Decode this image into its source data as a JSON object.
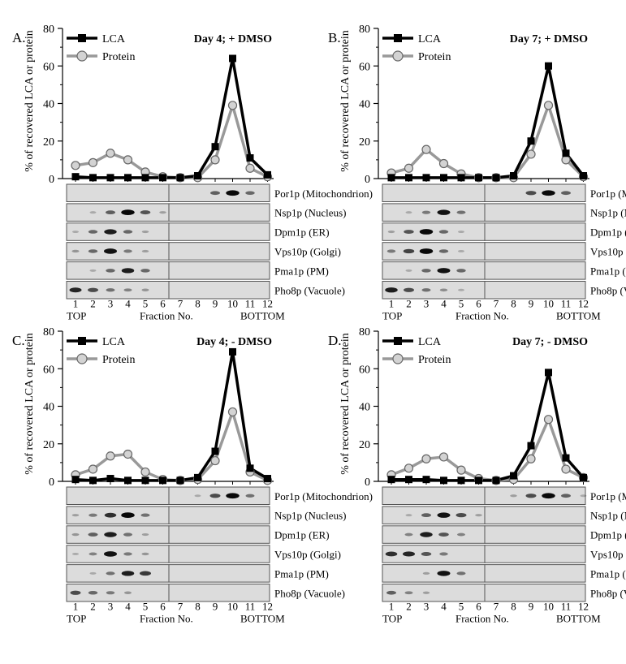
{
  "colors": {
    "lca": "#000000",
    "protein": "#999999",
    "protein_marker_fill": "#d3d3d3",
    "blot_background": "#dcdcdc",
    "band": "#000000"
  },
  "y_axis_label": "% of recovered LCA or protein",
  "x_axis": {
    "fractions": [
      "1",
      "2",
      "3",
      "4",
      "5",
      "6",
      "7",
      "8",
      "9",
      "10",
      "11",
      "12"
    ],
    "top_label": "TOP",
    "middle_label": "Fraction No.",
    "bottom_label": "BOTTOM"
  },
  "legend": {
    "lca": "LCA",
    "protein": "Protein"
  },
  "blot_labels": [
    "Por1p (Mitochondrion)",
    "Nsp1p (Nucleus)",
    "Dpm1p (ER)",
    "Vps10p (Golgi)",
    "Pma1p (PM)",
    "Pho8p (Vacuole)"
  ],
  "blot_intensity_note": "relative band darkness per fraction (0 = none, 1 = darkest)",
  "chart_data": [
    {
      "panel": "A.",
      "title": "Day 4; + DMSO",
      "type": "line",
      "x": [
        1,
        2,
        3,
        4,
        5,
        6,
        7,
        8,
        9,
        10,
        11,
        12
      ],
      "ylim": [
        0,
        80
      ],
      "yticks": [
        0,
        20,
        40,
        60,
        80
      ],
      "legend_position": "top-left",
      "series": [
        {
          "name": "LCA",
          "values": [
            1,
            0.5,
            0.5,
            0.5,
            0.5,
            0.5,
            0.5,
            1.5,
            17,
            64,
            11,
            2
          ]
        },
        {
          "name": "Protein",
          "values": [
            7,
            8.5,
            13.5,
            10,
            3.5,
            1,
            0.5,
            0.5,
            10,
            39,
            5.5,
            1
          ]
        }
      ],
      "blots": [
        [
          0,
          0,
          0,
          0,
          0,
          0,
          0,
          0,
          0.5,
          0.95,
          0.45,
          0
        ],
        [
          0,
          0.1,
          0.5,
          0.95,
          0.55,
          0.15,
          0,
          0,
          0,
          0,
          0,
          0
        ],
        [
          0.1,
          0.45,
          0.85,
          0.45,
          0.15,
          0,
          0,
          0,
          0,
          0,
          0,
          0
        ],
        [
          0.2,
          0.45,
          0.9,
          0.35,
          0.15,
          0,
          0,
          0,
          0,
          0,
          0,
          0
        ],
        [
          0,
          0.1,
          0.45,
          0.85,
          0.45,
          0,
          0,
          0,
          0,
          0,
          0,
          0
        ],
        [
          0.8,
          0.6,
          0.4,
          0.3,
          0.2,
          0,
          0,
          0,
          0,
          0,
          0,
          0
        ]
      ]
    },
    {
      "panel": "B.",
      "title": "Day 7; + DMSO",
      "type": "line",
      "x": [
        1,
        2,
        3,
        4,
        5,
        6,
        7,
        8,
        9,
        10,
        11,
        12
      ],
      "ylim": [
        0,
        80
      ],
      "yticks": [
        0,
        20,
        40,
        60,
        80
      ],
      "legend_position": "top-left",
      "series": [
        {
          "name": "LCA",
          "values": [
            0.5,
            0.5,
            0.5,
            0.5,
            0.5,
            0.5,
            0.5,
            1.5,
            20,
            60,
            13.5,
            1.5
          ]
        },
        {
          "name": "Protein",
          "values": [
            3,
            5.5,
            15.5,
            8,
            2.5,
            0.5,
            0.5,
            0.5,
            13,
            39,
            10,
            1
          ]
        }
      ],
      "blots": [
        [
          0,
          0,
          0,
          0,
          0,
          0,
          0,
          0,
          0.6,
          0.95,
          0.5,
          0
        ],
        [
          0,
          0.1,
          0.35,
          0.9,
          0.4,
          0,
          0,
          0,
          0,
          0,
          0,
          0
        ],
        [
          0.15,
          0.55,
          0.95,
          0.45,
          0.1,
          0,
          0,
          0,
          0,
          0,
          0,
          0
        ],
        [
          0.35,
          0.65,
          0.95,
          0.45,
          0.1,
          0,
          0,
          0,
          0,
          0,
          0,
          0
        ],
        [
          0,
          0.1,
          0.45,
          0.9,
          0.45,
          0,
          0,
          0,
          0,
          0,
          0,
          0
        ],
        [
          0.85,
          0.6,
          0.4,
          0.25,
          0.1,
          0,
          0,
          0,
          0,
          0,
          0,
          0
        ]
      ]
    },
    {
      "panel": "C.",
      "title": "Day 4; - DMSO",
      "type": "line",
      "x": [
        1,
        2,
        3,
        4,
        5,
        6,
        7,
        8,
        9,
        10,
        11,
        12
      ],
      "ylim": [
        0,
        80
      ],
      "yticks": [
        0,
        20,
        40,
        60,
        80
      ],
      "legend_position": "top-left",
      "series": [
        {
          "name": "LCA",
          "values": [
            1,
            0.5,
            1.5,
            0.5,
            0.5,
            0.5,
            0.5,
            2,
            16,
            69,
            7,
            1.5
          ]
        },
        {
          "name": "Protein",
          "values": [
            3.5,
            6.5,
            13.5,
            14.5,
            5,
            1,
            0.5,
            1,
            11,
            37,
            5,
            0.5
          ]
        }
      ],
      "blots": [
        [
          0,
          0,
          0,
          0,
          0,
          0,
          0,
          0.1,
          0.6,
          0.95,
          0.4,
          0
        ],
        [
          0.15,
          0.35,
          0.75,
          0.95,
          0.4,
          0,
          0,
          0,
          0,
          0,
          0,
          0
        ],
        [
          0.2,
          0.5,
          0.85,
          0.4,
          0.15,
          0,
          0,
          0,
          0,
          0,
          0,
          0
        ],
        [
          0.1,
          0.3,
          0.9,
          0.35,
          0.2,
          0,
          0,
          0,
          0,
          0,
          0,
          0
        ],
        [
          0,
          0.1,
          0.4,
          0.85,
          0.7,
          0,
          0,
          0,
          0,
          0,
          0,
          0
        ],
        [
          0.6,
          0.45,
          0.35,
          0.2,
          0,
          0,
          0,
          0,
          0,
          0,
          0,
          0
        ]
      ]
    },
    {
      "panel": "D.",
      "title": "Day 7; - DMSO",
      "type": "line",
      "x": [
        1,
        2,
        3,
        4,
        5,
        6,
        7,
        8,
        9,
        10,
        11,
        12
      ],
      "ylim": [
        0,
        80
      ],
      "yticks": [
        0,
        20,
        40,
        60,
        80
      ],
      "legend_position": "top-left",
      "series": [
        {
          "name": "LCA",
          "values": [
            1,
            1,
            1,
            0.5,
            0.5,
            0.5,
            0.5,
            3,
            19,
            58,
            12.5,
            2
          ]
        },
        {
          "name": "Protein",
          "values": [
            3.5,
            7,
            12,
            13,
            6,
            1.5,
            0.5,
            1,
            12,
            33,
            6.5,
            2
          ]
        }
      ],
      "blots": [
        [
          0,
          0,
          0,
          0,
          0,
          0,
          0,
          0.15,
          0.6,
          0.95,
          0.5,
          0.1
        ],
        [
          0,
          0.1,
          0.5,
          0.9,
          0.6,
          0.15,
          0,
          0,
          0,
          0,
          0,
          0
        ],
        [
          0,
          0.3,
          0.85,
          0.55,
          0.3,
          0,
          0,
          0,
          0,
          0,
          0,
          0
        ],
        [
          0.75,
          0.8,
          0.55,
          0.35,
          0,
          0,
          0,
          0,
          0,
          0,
          0,
          0
        ],
        [
          0,
          0,
          0.15,
          0.9,
          0.4,
          0,
          0,
          0,
          0,
          0,
          0,
          0
        ],
        [
          0.5,
          0.3,
          0.15,
          0,
          0,
          0,
          0,
          0,
          0,
          0,
          0,
          0
        ]
      ]
    }
  ]
}
